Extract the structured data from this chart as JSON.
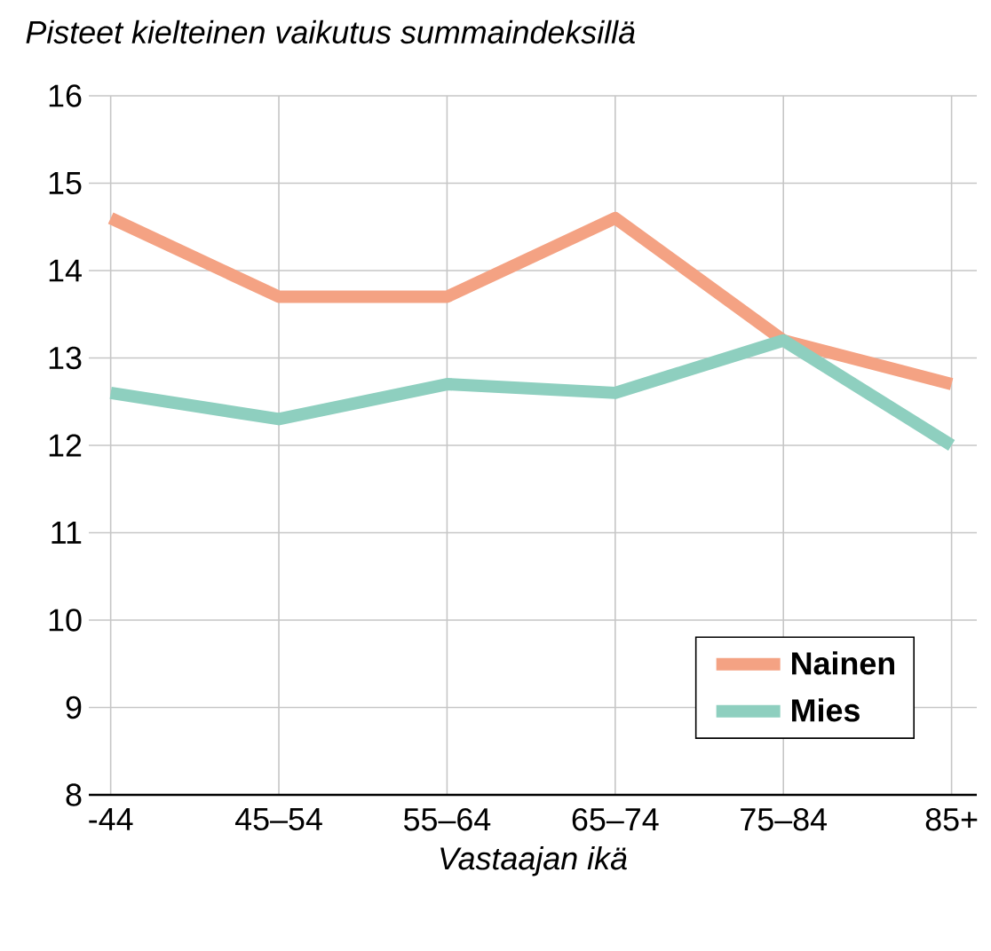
{
  "chart_data": {
    "type": "line",
    "ylabel": "Pisteet kielteinen vaikutus summaindeksillä",
    "xlabel": "Vastaajan ikä",
    "categories": [
      "-44",
      "45–54",
      "55–64",
      "65–74",
      "75–84",
      "85+"
    ],
    "series": [
      {
        "name": "Nainen",
        "color": "#f4a283",
        "values": [
          14.6,
          13.7,
          13.7,
          14.6,
          13.2,
          12.7
        ]
      },
      {
        "name": "Mies",
        "color": "#8ecfbf",
        "values": [
          12.6,
          12.3,
          12.7,
          12.6,
          13.2,
          12.0
        ]
      }
    ],
    "ylim": [
      8,
      16
    ],
    "yticks": [
      8,
      9,
      10,
      11,
      12,
      13,
      14,
      15,
      16
    ],
    "grid": true,
    "legend": "bottom right",
    "marker": "none",
    "line_style": "solid"
  }
}
